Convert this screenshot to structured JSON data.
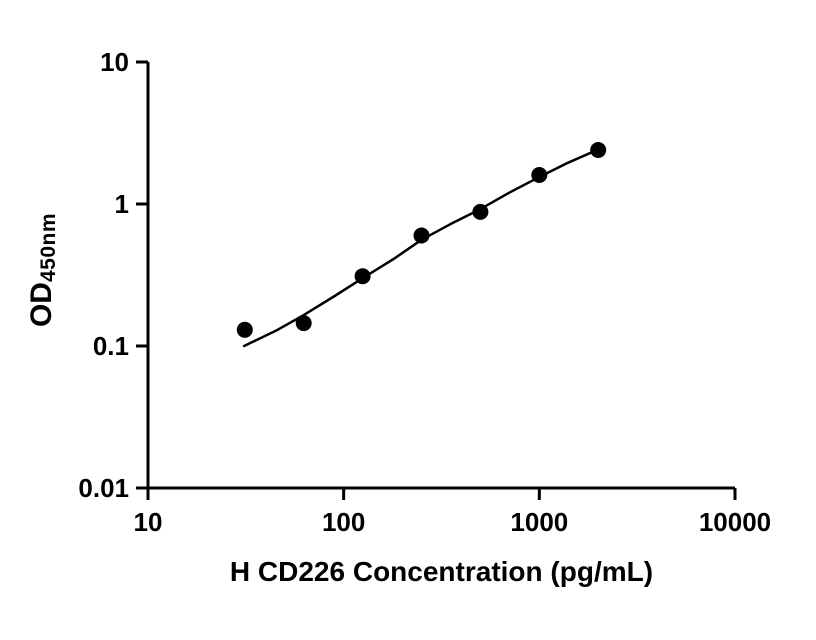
{
  "figure": {
    "background_color": "#ffffff",
    "x_axis_title": "H CD226 Concentration (pg/mL)",
    "y_axis_title_main": "OD",
    "y_axis_title_sub": "450nm"
  },
  "chart_data": {
    "type": "scatter",
    "title": "",
    "xlabel": "H CD226 Concentration (pg/mL)",
    "ylabel": "OD450nm",
    "x_scale": "log",
    "y_scale": "log",
    "xlim": [
      10,
      10000
    ],
    "ylim": [
      0.01,
      10
    ],
    "x_ticks": [
      10,
      100,
      1000,
      10000
    ],
    "x_tick_labels": [
      "10",
      "100",
      "1000",
      "10000"
    ],
    "y_ticks": [
      10,
      1,
      0.1,
      0.01
    ],
    "y_tick_labels": [
      "10",
      "1",
      "0.1",
      "0.01"
    ],
    "grid": false,
    "legend_position": "none",
    "axis_color": "#000000",
    "marker_color": "#000000",
    "line_color": "#000000",
    "series": [
      {
        "name": "standard-points",
        "type": "scatter",
        "marker": "filled-circle",
        "color": "#000000",
        "x": [
          31.25,
          62.5,
          125,
          250,
          500,
          1000,
          2000
        ],
        "y": [
          0.13,
          0.145,
          0.31,
          0.6,
          0.88,
          1.6,
          2.4
        ]
      },
      {
        "name": "fit-curve",
        "type": "line",
        "color": "#000000",
        "x": [
          31,
          45,
          62.5,
          90,
          125,
          180,
          250,
          350,
          500,
          700,
          1000,
          1400,
          2000
        ],
        "y": [
          0.1,
          0.128,
          0.165,
          0.225,
          0.3,
          0.41,
          0.56,
          0.72,
          0.92,
          1.2,
          1.55,
          1.95,
          2.42
        ]
      }
    ]
  }
}
